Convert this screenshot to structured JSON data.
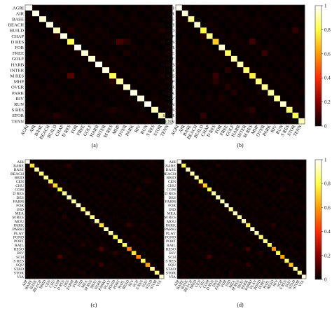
{
  "colorbar": {
    "ticks": [
      "0",
      "0.2",
      "0.4",
      "0.6",
      "0.8",
      "1"
    ],
    "tick_values": [
      0,
      0.2,
      0.4,
      0.6,
      0.8,
      1.0
    ],
    "colormap": "hot",
    "colormap_stops": [
      "#000000",
      "#8a0000",
      "#ff2a00",
      "#ff9a00",
      "#ffff40",
      "#ffffff"
    ]
  },
  "chart_data": [
    {
      "type": "heatmap",
      "caption": "(a)",
      "labels": [
        "AGRI",
        "AIR",
        "BASE",
        "BEACH",
        "BUILD",
        "CHAP",
        "D RES",
        "FOR",
        "FREE",
        "GOLF",
        "HARB",
        "INTER",
        "M RES",
        "MHP",
        "OVER",
        "PARK",
        "RIV",
        "RUN",
        "S RES",
        "STOR",
        "TENN"
      ],
      "diagonal": [
        1.0,
        0.98,
        0.95,
        0.97,
        0.93,
        0.97,
        0.82,
        0.99,
        0.96,
        0.95,
        0.99,
        0.97,
        0.82,
        0.9,
        0.95,
        0.97,
        0.97,
        0.99,
        0.92,
        0.93,
        0.99
      ],
      "off_diagonal": [
        {
          "row": "D RES",
          "col": "MHP",
          "value": 0.1
        },
        {
          "row": "D RES",
          "col": "OVER",
          "value": 0.06
        },
        {
          "row": "M RES",
          "col": "D RES",
          "value": 0.12
        },
        {
          "row": "BUILD",
          "col": "D RES",
          "value": 0.05
        },
        {
          "row": "CHAP",
          "col": "BUILD",
          "value": 0.04
        },
        {
          "row": "BUILD",
          "col": "STOR",
          "value": 0.04
        },
        {
          "row": "MHP",
          "col": "M RES",
          "value": 0.05
        },
        {
          "row": "S RES",
          "col": "M RES",
          "value": 0.04
        },
        {
          "row": "STOR",
          "col": "BUILD",
          "value": 0.05
        },
        {
          "row": "FREE",
          "col": "OVER",
          "value": 0.04
        },
        {
          "row": "INTER",
          "col": "FREE",
          "value": 0.03
        }
      ],
      "zlim": [
        0,
        1
      ]
    },
    {
      "type": "heatmap",
      "caption": "(b)",
      "labels": [
        "AGRI",
        "AIR",
        "BASE",
        "BEACH",
        "BUILD",
        "CHAP",
        "D RES",
        "FOR",
        "FREE",
        "GOLF",
        "HARB",
        "INTER",
        "M RES",
        "MHP",
        "OVER",
        "PARK",
        "RIV",
        "RUN",
        "S RES",
        "STOR",
        "TENN"
      ],
      "diagonal": [
        0.99,
        0.96,
        0.88,
        0.95,
        0.8,
        0.88,
        0.7,
        0.95,
        0.83,
        0.9,
        0.92,
        0.85,
        0.78,
        0.86,
        0.88,
        0.9,
        0.88,
        0.95,
        0.85,
        0.82,
        0.92
      ],
      "off_diagonal": [
        {
          "row": "BUILD",
          "col": "STOR",
          "value": 0.07
        },
        {
          "row": "D RES",
          "col": "M RES",
          "value": 0.09
        },
        {
          "row": "FREE",
          "col": "OVER",
          "value": 0.08
        },
        {
          "row": "M RES",
          "col": "D RES",
          "value": 0.08
        },
        {
          "row": "MHP",
          "col": "D RES",
          "value": 0.06
        },
        {
          "row": "INTER",
          "col": "FREE",
          "value": 0.06
        },
        {
          "row": "S RES",
          "col": "M RES",
          "value": 0.06
        },
        {
          "row": "STOR",
          "col": "BUILD",
          "value": 0.07
        },
        {
          "row": "CHAP",
          "col": "BUILD",
          "value": 0.05
        },
        {
          "row": "PARK",
          "col": "GOLF",
          "value": 0.05
        },
        {
          "row": "RIV",
          "col": "FOR",
          "value": 0.04
        },
        {
          "row": "OVER",
          "col": "FREE",
          "value": 0.05
        }
      ],
      "zlim": [
        0,
        1
      ]
    },
    {
      "type": "heatmap",
      "caption": "(c)",
      "labels": [
        "AIR",
        "BARE",
        "BASE",
        "BEACH",
        "BRID",
        "CEN",
        "CHU",
        "COM",
        "D RES",
        "DES",
        "FARM",
        "FOR",
        "IND",
        "MEA",
        "M RES",
        "MOU",
        "PARK",
        "PARKI",
        "PLAY",
        "POND",
        "PORT",
        "RAIL",
        "RESO",
        "RIV",
        "SCH",
        "S RES",
        "SQU",
        "STAD",
        "STOR",
        "VIA"
      ],
      "diagonal": [
        0.98,
        0.75,
        0.9,
        0.85,
        0.88,
        0.8,
        0.72,
        0.78,
        0.88,
        0.92,
        0.9,
        0.95,
        0.85,
        0.92,
        0.88,
        0.9,
        0.75,
        0.92,
        0.9,
        0.82,
        0.85,
        0.8,
        0.55,
        0.75,
        0.55,
        0.82,
        0.62,
        0.9,
        0.85,
        0.95
      ],
      "off_diagonal": [
        {
          "row": "RESO",
          "col": "PARK",
          "value": 0.1
        },
        {
          "row": "SCH",
          "col": "COM",
          "value": 0.1
        },
        {
          "row": "SQU",
          "col": "PARK",
          "value": 0.08
        },
        {
          "row": "CHU",
          "col": "CEN",
          "value": 0.08
        },
        {
          "row": "PARK",
          "col": "RESO",
          "value": 0.07
        },
        {
          "row": "BARE",
          "col": "DES",
          "value": 0.06
        },
        {
          "row": "RIV",
          "col": "POND",
          "value": 0.06
        },
        {
          "row": "COM",
          "col": "SCH",
          "value": 0.05
        },
        {
          "row": "RAIL",
          "col": "IND",
          "value": 0.05
        },
        {
          "row": "CEN",
          "col": "SQU",
          "value": 0.05
        },
        {
          "row": "M RES",
          "col": "D RES",
          "value": 0.05
        },
        {
          "row": "S RES",
          "col": "M RES",
          "value": 0.04
        },
        {
          "row": "IND",
          "col": "COM",
          "value": 0.04
        },
        {
          "row": "POND",
          "col": "RIV",
          "value": 0.04
        },
        {
          "row": "STOR",
          "col": "IND",
          "value": 0.04
        }
      ],
      "zlim": [
        0,
        1
      ]
    },
    {
      "type": "heatmap",
      "caption": "(d)",
      "labels": [
        "AIR",
        "BARE",
        "BASE",
        "BEACH",
        "BRID",
        "CEN",
        "CHU",
        "COM",
        "D RES",
        "DES",
        "FARM",
        "FOR",
        "IND",
        "MEA",
        "M RES",
        "MOU",
        "PARK",
        "PARKI",
        "PLAY",
        "POND",
        "PORT",
        "RAIL",
        "RESO",
        "RIV",
        "SCH",
        "S RES",
        "SQU",
        "STAD",
        "STOR",
        "VIA"
      ],
      "diagonal": [
        0.98,
        0.8,
        0.92,
        0.9,
        0.92,
        0.82,
        0.7,
        0.8,
        0.9,
        0.93,
        0.92,
        0.97,
        0.88,
        0.93,
        0.9,
        0.92,
        0.78,
        0.95,
        0.92,
        0.85,
        0.88,
        0.82,
        0.6,
        0.8,
        0.62,
        0.85,
        0.68,
        0.92,
        0.88,
        0.97
      ],
      "off_diagonal": [
        {
          "row": "RESO",
          "col": "PARK",
          "value": 0.09
        },
        {
          "row": "SCH",
          "col": "COM",
          "value": 0.09
        },
        {
          "row": "SQU",
          "col": "PARK",
          "value": 0.07
        },
        {
          "row": "CHU",
          "col": "CEN",
          "value": 0.08
        },
        {
          "row": "PARK",
          "col": "RESO",
          "value": 0.06
        },
        {
          "row": "BARE",
          "col": "DES",
          "value": 0.05
        },
        {
          "row": "RIV",
          "col": "POND",
          "value": 0.05
        },
        {
          "row": "COM",
          "col": "SCH",
          "value": 0.05
        },
        {
          "row": "RAIL",
          "col": "IND",
          "value": 0.04
        },
        {
          "row": "CEN",
          "col": "SQU",
          "value": 0.04
        },
        {
          "row": "M RES",
          "col": "D RES",
          "value": 0.04
        },
        {
          "row": "STOR",
          "col": "IND",
          "value": 0.04
        }
      ],
      "zlim": [
        0,
        1
      ]
    }
  ]
}
